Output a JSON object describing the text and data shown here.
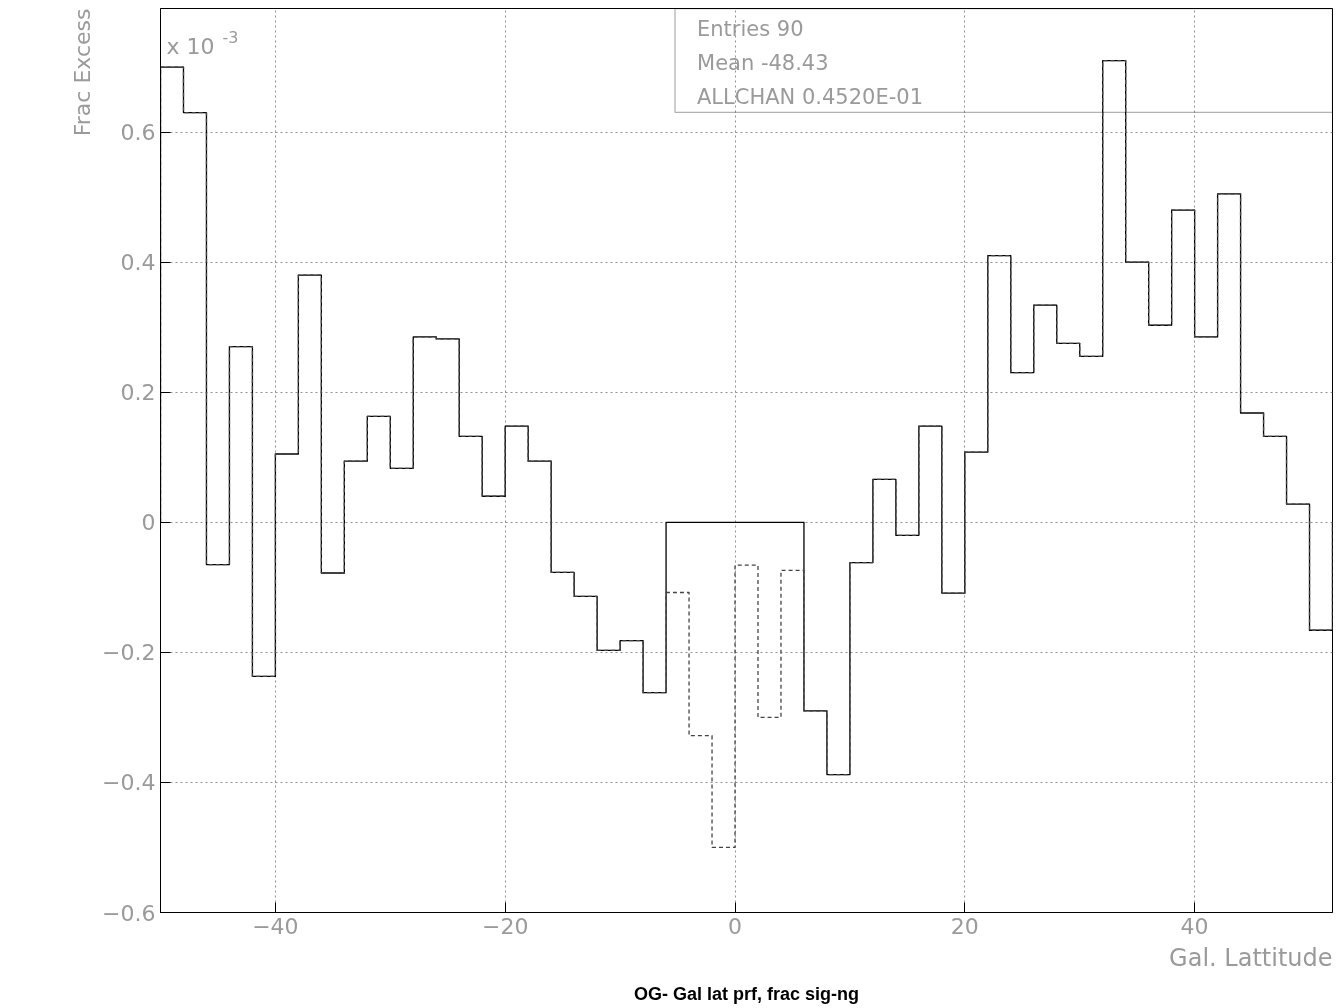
{
  "chart_data": {
    "type": "histogram",
    "title": "OG- Gal lat prf, frac sig-ng",
    "xlabel": "Gal. Lattitude",
    "ylabel": "Frac Excess",
    "bins": [
      -50,
      -48,
      -46,
      -44,
      -42,
      -40,
      -38,
      -36,
      -34,
      -32,
      -30,
      -28,
      -26,
      -24,
      -22,
      -20,
      -18,
      -16,
      -14,
      -12,
      -10,
      -8,
      -6,
      -4,
      -2,
      0,
      2,
      4,
      6,
      8,
      10,
      12,
      14,
      16,
      18,
      20,
      22,
      24,
      26,
      28,
      30,
      32,
      34,
      36,
      38,
      40,
      42,
      44,
      46,
      48,
      50,
      52
    ],
    "series": [
      {
        "color": "#000000",
        "line_style": "solid",
        "values": [
          0.7,
          0.63,
          -0.065,
          0.27,
          -0.237,
          0.105,
          0.38,
          -0.078,
          0.094,
          0.163,
          0.083,
          0.285,
          0.282,
          0.132,
          0.04,
          0.148,
          0.094,
          -0.077,
          -0.114,
          -0.197,
          -0.182,
          -0.262,
          0,
          0,
          0,
          0,
          0,
          0,
          -0.29,
          -0.388,
          -0.062,
          0.066,
          -0.02,
          0.148,
          -0.109,
          0.108,
          0.41,
          0.23,
          0.334,
          0.275,
          0.255,
          0.71,
          0.4,
          0.303,
          0.48,
          0.285,
          0.505,
          0.168,
          0.132,
          0.028,
          -0.166
        ]
      },
      {
        "color": "#444444",
        "line_style": "dashed",
        "values": [
          0.7,
          0.63,
          -0.065,
          0.27,
          -0.237,
          0.105,
          0.38,
          -0.078,
          0.094,
          0.163,
          0.083,
          0.285,
          0.282,
          0.132,
          0.04,
          0.148,
          0.094,
          -0.077,
          -0.114,
          -0.197,
          -0.182,
          -0.262,
          -0.108,
          -0.328,
          -0.5,
          -0.066,
          -0.3,
          -0.074,
          -0.29,
          -0.388,
          -0.062,
          0.066,
          -0.02,
          0.148,
          -0.109,
          0.108,
          0.41,
          0.23,
          0.334,
          0.275,
          0.255,
          0.71,
          0.4,
          0.303,
          0.48,
          0.285,
          0.505,
          0.168,
          0.132,
          0.028,
          -0.166
        ]
      }
    ],
    "xlim": [
      -50,
      52
    ],
    "ylim": [
      -0.6,
      0.79
    ],
    "xticks": [
      -40,
      -20,
      0,
      20,
      40
    ],
    "yticks": [
      -0.6,
      -0.4,
      -0.2,
      0,
      0.2,
      0.4,
      0.6
    ],
    "grid": true,
    "annotations": [
      "x 10$^{-3}$",
      "Entries 90",
      "Mean -48.43",
      "ALLCHAN 0.4520E-01"
    ]
  }
}
